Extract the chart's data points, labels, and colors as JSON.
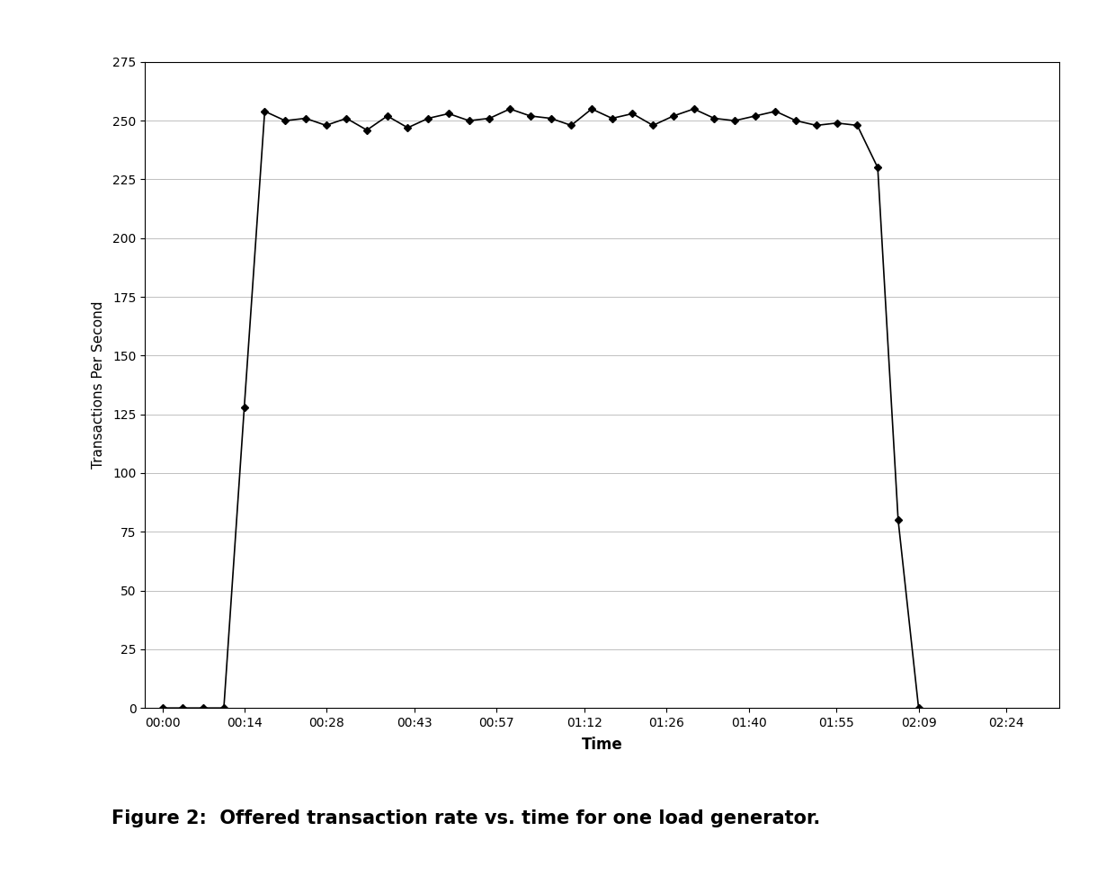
{
  "title": "Figure 2:  Offered transaction rate vs. time for one load generator.",
  "xlabel": "Time",
  "ylabel": "Transactions Per Second",
  "background_color": "#ffffff",
  "line_color": "#000000",
  "marker": "D",
  "marker_size": 4,
  "ylim": [
    0,
    275
  ],
  "yticks": [
    0,
    25,
    50,
    75,
    100,
    125,
    150,
    175,
    200,
    225,
    250,
    275
  ],
  "tick_positions_s": [
    0,
    14,
    28,
    43,
    57,
    72,
    86,
    100,
    115,
    129,
    144
  ],
  "tick_labels": [
    "00:00",
    "00:14",
    "00:28",
    "00:43",
    "00:57",
    "01:12",
    "01:26",
    "01:40",
    "01:55",
    "02:09",
    "02:24"
  ],
  "xlim": [
    -3,
    153
  ],
  "y_values": [
    0,
    0,
    0,
    0,
    128,
    254,
    250,
    251,
    248,
    251,
    246,
    252,
    247,
    251,
    253,
    250,
    251,
    255,
    252,
    251,
    248,
    255,
    251,
    253,
    248,
    252,
    255,
    251,
    250,
    252,
    254,
    250,
    248,
    249,
    248,
    230,
    80,
    0
  ],
  "x_start_s": 10,
  "x_end_s": 129,
  "grid_color": "#c0c0c0",
  "grid_linewidth": 0.7,
  "line_linewidth": 1.2,
  "caption_fontsize": 15,
  "caption_fontweight": "bold",
  "axis_tick_fontsize": 10,
  "ylabel_fontsize": 11,
  "xlabel_fontsize": 12,
  "xlabel_fontweight": "bold"
}
